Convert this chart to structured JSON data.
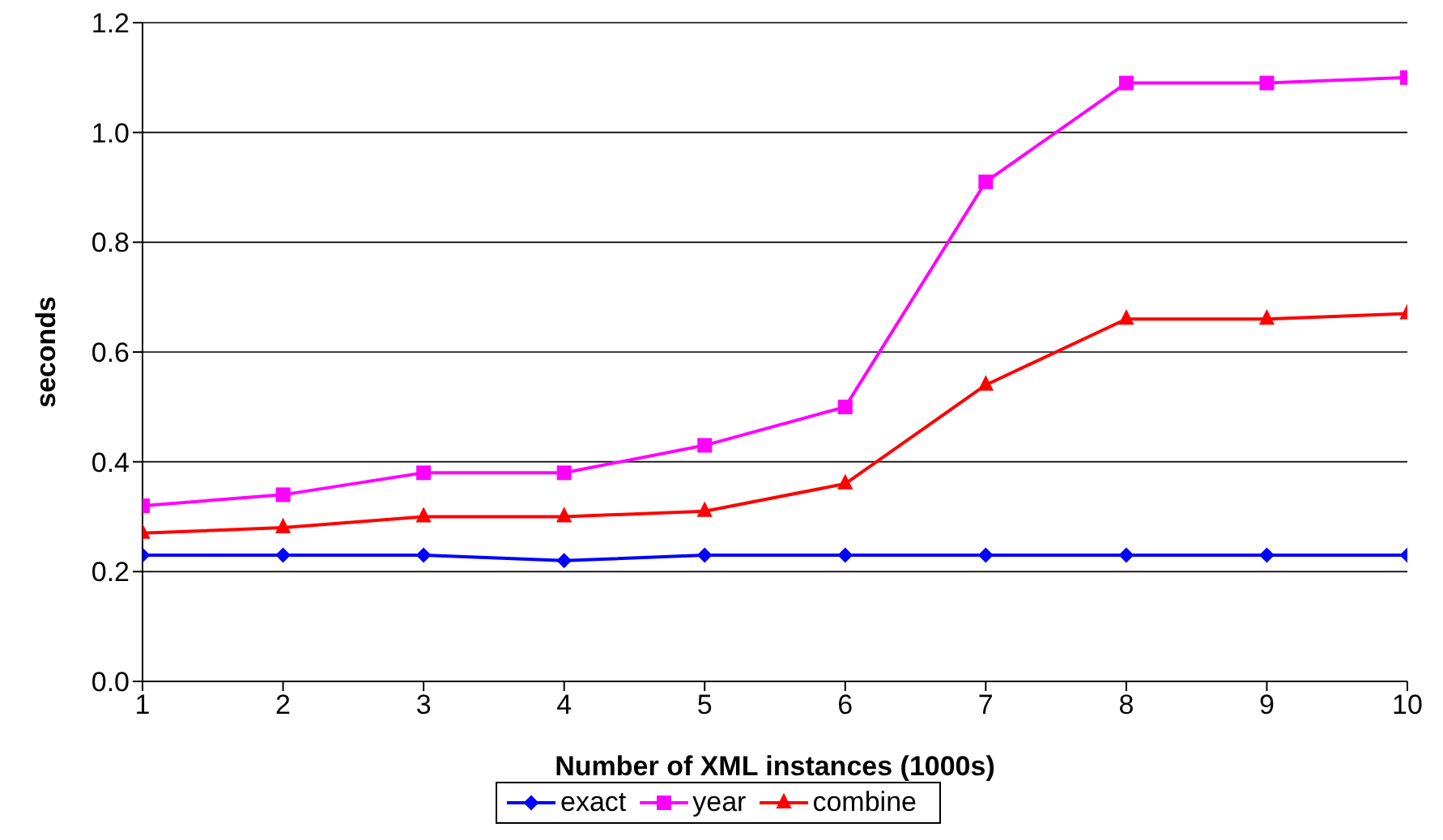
{
  "chart_data": {
    "type": "line",
    "xlabel": "Number of XML instances (1000s)",
    "ylabel": "seconds",
    "x": [
      1,
      2,
      3,
      4,
      5,
      6,
      7,
      8,
      9,
      10
    ],
    "series": [
      {
        "name": "exact",
        "color": "#0000ff",
        "marker": "diamond",
        "values": [
          0.23,
          0.23,
          0.23,
          0.22,
          0.23,
          0.23,
          0.23,
          0.23,
          0.23,
          0.23
        ]
      },
      {
        "name": "year",
        "color": "#ff00ff",
        "marker": "square",
        "values": [
          0.32,
          0.34,
          0.38,
          0.38,
          0.43,
          0.5,
          0.91,
          1.09,
          1.09,
          1.1
        ]
      },
      {
        "name": "combine",
        "color": "#ff0000",
        "marker": "triangle",
        "values": [
          0.27,
          0.28,
          0.3,
          0.3,
          0.31,
          0.36,
          0.54,
          0.66,
          0.66,
          0.67
        ]
      }
    ],
    "xlim": [
      1,
      10
    ],
    "xticks": [
      1,
      2,
      3,
      4,
      5,
      6,
      7,
      8,
      9,
      10
    ],
    "ylim": [
      0,
      1.2
    ],
    "yticks": [
      {
        "value": 0,
        "label": "0.0"
      },
      0.2,
      0.4,
      0.6,
      0.8,
      {
        "value": 1,
        "label": "1.0"
      },
      1.2
    ],
    "grid": "y",
    "legend": "bottom"
  }
}
